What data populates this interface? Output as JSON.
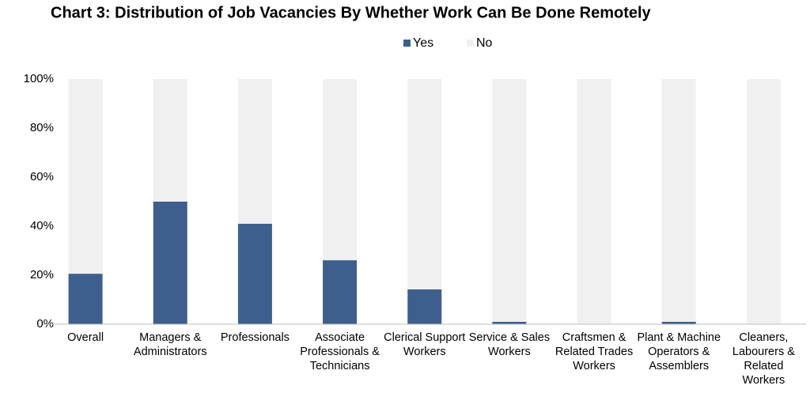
{
  "chart_data": {
    "type": "stacked_bar",
    "title": "Chart 3: Distribution of Job Vacancies By Whether Work Can Be Done Remotely",
    "categories": [
      "Overall",
      "Managers & Administrators",
      "Professionals",
      "Associate Professionals & Technicians",
      "Clerical Support Workers",
      "Service & Sales Workers",
      "Craftsmen & Related Trades Workers",
      "Plant & Machine Operators & Assemblers",
      "Cleaners, Labourers & Related Workers"
    ],
    "series": [
      {
        "name": "Yes",
        "color": "#3e5f8e",
        "values": [
          20.6,
          50.0,
          41.0,
          26.1,
          14.2,
          1.0,
          0,
          1.0,
          0
        ]
      },
      {
        "name": "No",
        "color": "#f0f0f0",
        "values": [
          79.4,
          50.0,
          59.0,
          73.9,
          85.8,
          99.0,
          100,
          99.0,
          100
        ]
      }
    ],
    "ylim": [
      0,
      100
    ],
    "yticks": [
      {
        "value": 0,
        "label": "0%"
      },
      {
        "value": 20,
        "label": "20%"
      },
      {
        "value": 40,
        "label": "40%"
      },
      {
        "value": 60,
        "label": "60%"
      },
      {
        "value": 80,
        "label": "80%"
      },
      {
        "value": 100,
        "label": "100%"
      }
    ],
    "grid": false,
    "legend": "top"
  }
}
